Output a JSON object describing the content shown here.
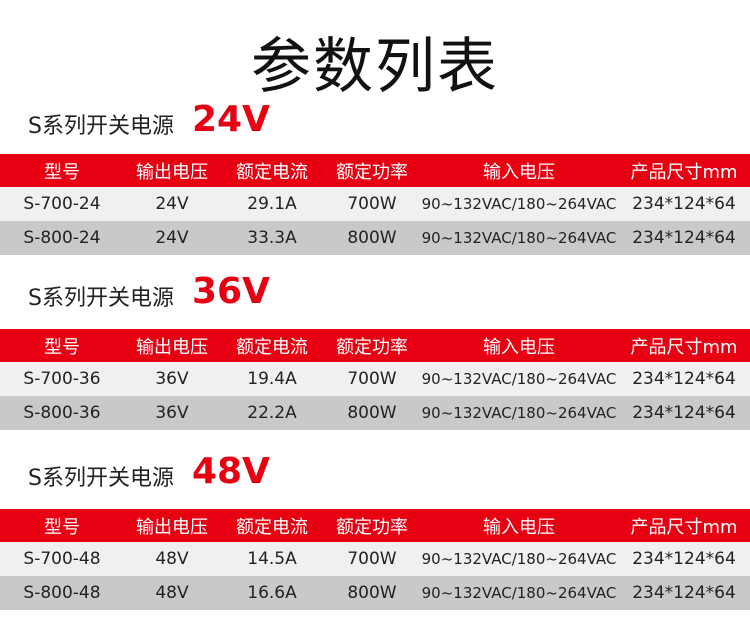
{
  "title": "参数列表",
  "columns": [
    "型号",
    "输出电压",
    "额定电流",
    "额定功率",
    "输入电压",
    "产品尺寸mm"
  ],
  "sections": [
    {
      "name": "S系列开关电源",
      "voltage": "24V",
      "rows": [
        [
          "S-700-24",
          "24V",
          "29.1A",
          "700W",
          "90~132VAC/180~264VAC",
          "234*124*64"
        ],
        [
          "S-800-24",
          "24V",
          "33.3A",
          "800W",
          "90~132VAC/180~264VAC",
          "234*124*64"
        ]
      ]
    },
    {
      "name": "S系列开关电源",
      "voltage": "36V",
      "rows": [
        [
          "S-700-36",
          "36V",
          "19.4A",
          "700W",
          "90~132VAC/180~264VAC",
          "234*124*64"
        ],
        [
          "S-800-36",
          "36V",
          "22.2A",
          "800W",
          "90~132VAC/180~264VAC",
          "234*124*64"
        ]
      ]
    },
    {
      "name": "S系列开关电源",
      "voltage": "48V",
      "rows": [
        [
          "S-700-48",
          "48V",
          "14.5A",
          "700W",
          "90~132VAC/180~264VAC",
          "234*124*64"
        ],
        [
          "S-800-48",
          "48V",
          "16.6A",
          "800W",
          "90~132VAC/180~264VAC",
          "234*124*64"
        ]
      ]
    }
  ],
  "colors": {
    "accent": "#e60012",
    "row_light": "#f0f0f0",
    "row_dark": "#c9c9c9"
  }
}
